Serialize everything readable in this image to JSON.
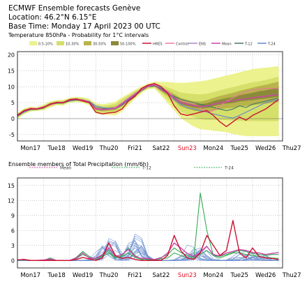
{
  "header": {
    "title": "ECMWF Ensemble forecasts Genève",
    "location": "Location:  46.2°N 6.15°E",
    "base_time": "Base Time: Monday 17 April 2023 00 UTC"
  },
  "colors": {
    "band1": "#ecf28e",
    "band2": "#d5e06a",
    "band3": "#b8b44c",
    "band4": "#8c8a3a",
    "hres": "#cc1133",
    "control": "#ee7799",
    "ens": "#aa88cc",
    "mean": "#cc44aa",
    "t12": "#447766",
    "t24": "#6688cc",
    "precip_member": "#6d8fd0",
    "precip_t12": "#33aa55",
    "sunday": "#dd1122"
  },
  "chart_data": [
    {
      "type": "area",
      "title": "Temperature 850hPa - Probability for 1°C intervals",
      "prob_legend": [
        "0.5-10%",
        "10-30%",
        "30-50%",
        "50-100%"
      ],
      "line_legend": [
        "HRES",
        "Control",
        "ENS",
        "Mean",
        "T-12",
        "T-24"
      ],
      "ylim": [
        -7,
        21
      ],
      "yticks": [
        -5,
        0,
        5,
        10,
        15,
        20
      ],
      "x_days": [
        0,
        1,
        2,
        3,
        4,
        5,
        6,
        7,
        8,
        9,
        10
      ],
      "x_labels": [
        "Mon17",
        "Tue18",
        "Wed19",
        "Thu20",
        "Fri21",
        "Sat22",
        "Sun23",
        "Mon24",
        "Tue25",
        "Wed26",
        "Thu27"
      ],
      "sunday_index": 6,
      "x": [
        0,
        0.25,
        0.5,
        0.75,
        1,
        1.25,
        1.5,
        1.75,
        2,
        2.25,
        2.5,
        2.75,
        3,
        3.25,
        3.5,
        3.75,
        4,
        4.25,
        4.5,
        4.75,
        5,
        5.25,
        5.5,
        5.75,
        6,
        6.25,
        6.5,
        6.75,
        7,
        7.25,
        7.5,
        7.75,
        8,
        8.25,
        8.5,
        8.75,
        9,
        9.25,
        9.5,
        9.75,
        10
      ],
      "series": [
        {
          "name": "Mean",
          "values": [
            1,
            2.3,
            3,
            3,
            3.5,
            4.5,
            5,
            5,
            5.8,
            6,
            5.8,
            5.2,
            3,
            2.8,
            3,
            3.2,
            4.5,
            6,
            7.5,
            9,
            10.2,
            10.5,
            9,
            8,
            6.5,
            5,
            4.5,
            4,
            3.8,
            4,
            4.5,
            5,
            5.3,
            5.5,
            6,
            6.2,
            6.5,
            6.8,
            7,
            7.3,
            7.5
          ]
        },
        {
          "name": "HRES",
          "values": [
            1,
            2.5,
            3.1,
            3,
            3.5,
            4.5,
            5.1,
            5,
            6,
            6.2,
            5.5,
            5,
            2,
            1.5,
            1.8,
            2,
            3,
            5.5,
            7,
            9.5,
            10.5,
            11,
            10,
            8,
            4,
            1.5,
            1,
            1.5,
            2,
            2.5,
            1,
            -1,
            -2.5,
            -1,
            0.5,
            -0.5,
            1,
            2,
            3,
            4.5,
            6
          ]
        },
        {
          "name": "Control",
          "values": [
            1.2,
            2.4,
            3.3,
            3.2,
            3.8,
            4.2,
            5,
            5.2,
            5.8,
            6.1,
            5.9,
            5.1,
            3.3,
            3,
            2.8,
            3.5,
            5,
            6.5,
            8,
            9.2,
            10,
            10.8,
            10,
            8.5,
            6.5,
            5.5,
            5,
            4.5,
            3.5,
            2,
            2.5,
            4,
            5.5,
            6.5,
            7.5,
            8.5,
            9,
            9.2,
            9.5,
            9.5,
            9.5
          ]
        },
        {
          "name": "T-12",
          "values": [
            0.8,
            2.2,
            2.8,
            2.9,
            3.3,
            4.6,
            4.8,
            4.9,
            5.5,
            5.8,
            5.7,
            5.3,
            3.5,
            3.2,
            3,
            3.2,
            4.2,
            5.8,
            7.2,
            8.8,
            10,
            10.2,
            9.5,
            8,
            7,
            6,
            5.5,
            5,
            4.5,
            4,
            3.5,
            3,
            2.5,
            3,
            4,
            3.5,
            4.5,
            5,
            5.5,
            6,
            6.5
          ]
        },
        {
          "name": "T-24",
          "values": [
            0.7,
            2,
            2.9,
            3.1,
            3.6,
            4.3,
            4.9,
            5.1,
            5.7,
            6.1,
            5.6,
            5.4,
            4,
            3.5,
            3.2,
            3.5,
            4.8,
            6.2,
            7.6,
            9.1,
            10.1,
            10.9,
            9.6,
            8.2,
            6,
            4.5,
            3.5,
            3,
            2.5,
            2,
            1.5,
            1,
            0.5,
            0.2,
            1,
            2,
            3,
            4,
            5,
            5.5,
            6
          ]
        }
      ],
      "prob_envelopes": [
        {
          "name": "0.5-10%",
          "low": [
            0,
            1.3,
            2.2,
            2.4,
            2.6,
            3.5,
            4.2,
            4.1,
            5,
            5.2,
            4.9,
            4.2,
            1.6,
            1.2,
            1.2,
            1,
            2.2,
            4.2,
            6.2,
            8,
            9.2,
            9.4,
            7.2,
            4.8,
            2.6,
            0.2,
            -1.2,
            -2.5,
            -3.3,
            -3.5,
            -3.8,
            -4,
            -4.3,
            -4.8,
            -5.2,
            -5.5,
            -5.5,
            -5.5,
            -5.5,
            -5.5,
            -5.5
          ],
          "high": [
            1.8,
            3.2,
            3.8,
            3.6,
            4.4,
            5.4,
            5.8,
            5.9,
            6.6,
            6.8,
            6.7,
            6.2,
            4.8,
            4.5,
            4.8,
            5.3,
            6.7,
            7.8,
            9,
            10.2,
            11,
            11.6,
            11.5,
            11.5,
            11.3,
            11.2,
            11.3,
            11.5,
            11.7,
            12,
            12.5,
            13,
            13.5,
            14,
            14.5,
            15,
            15.5,
            15.8,
            16,
            16.2,
            16.5
          ]
        },
        {
          "name": "10-30%",
          "low": [
            0.3,
            1.6,
            2.5,
            2.6,
            2.9,
            3.8,
            4.5,
            4.4,
            5.3,
            5.5,
            5.2,
            4.6,
            2.1,
            1.7,
            1.8,
            1.8,
            3,
            4.8,
            6.6,
            8.4,
            9.5,
            9.7,
            8,
            6,
            4.1,
            2.2,
            1.3,
            0.5,
            -0.2,
            -0.4,
            -0.4,
            -0.4,
            -0.5,
            -0.6,
            -0.7,
            -0.8,
            -0.8,
            -0.8,
            -0.8,
            -0.8,
            -0.8
          ],
          "high": [
            1.6,
            2.9,
            3.5,
            3.4,
            4.1,
            5.1,
            5.5,
            5.6,
            6.3,
            6.5,
            6.4,
            5.8,
            4.3,
            4,
            4.2,
            4.7,
            6.1,
            7.3,
            8.6,
            9.7,
            10.8,
            11.2,
            10.5,
            9.8,
            9,
            8.2,
            7.9,
            7.7,
            7.6,
            7.8,
            8.3,
            8.9,
            9.4,
            9.9,
            10.4,
            10.9,
            11.4,
            11.7,
            12.1,
            12.6,
            13.2
          ]
        },
        {
          "name": "30-50%",
          "low": [
            0.6,
            1.9,
            2.7,
            2.8,
            3.2,
            4.1,
            4.7,
            4.7,
            5.5,
            5.7,
            5.5,
            4.9,
            2.6,
            2.3,
            2.4,
            2.6,
            3.9,
            5.4,
            7,
            8.7,
            9.8,
            10.1,
            8.6,
            7.1,
            5.5,
            3.8,
            3.1,
            2.5,
            2.2,
            2.2,
            2.5,
            2.9,
            3.2,
            3.4,
            3.8,
            4,
            4.2,
            4.5,
            4.7,
            5,
            5.2
          ],
          "high": [
            1.4,
            2.7,
            3.3,
            3.2,
            3.8,
            4.9,
            5.3,
            5.3,
            6.1,
            6.3,
            6.1,
            5.5,
            3.6,
            3.3,
            3.6,
            3.8,
            5.1,
            6.6,
            8.1,
            9.3,
            10.6,
            10.9,
            9.7,
            8.9,
            7.7,
            6.5,
            5.9,
            5.5,
            5.4,
            5.8,
            6.5,
            7.1,
            7.6,
            8.1,
            8.7,
            9.2,
            9.7,
            10.2,
            10.6,
            11.1,
            11.6
          ]
        },
        {
          "name": "50-100%",
          "low": [
            0.8,
            2.1,
            2.9,
            2.9,
            3.4,
            4.3,
            4.9,
            4.9,
            5.7,
            5.9,
            5.7,
            5.1,
            2.9,
            2.6,
            2.8,
            3,
            4.4,
            5.8,
            7.4,
            8.9,
            10,
            10.3,
            8.9,
            7.6,
            6.1,
            4.6,
            4,
            3.5,
            3.2,
            3.4,
            3.9,
            4.4,
            4.7,
            4.9,
            5.4,
            5.6,
            5.8,
            6.1,
            6.3,
            6.6,
            6.8
          ],
          "high": [
            1.2,
            2.5,
            3.1,
            3.1,
            3.6,
            4.7,
            5.1,
            5.1,
            5.9,
            6.1,
            5.9,
            5.3,
            3.2,
            3,
            3.3,
            3.5,
            4.7,
            6.2,
            7.7,
            9.1,
            10.4,
            10.7,
            9.3,
            8.4,
            7,
            5.6,
            5.1,
            4.6,
            4.5,
            4.8,
            5.5,
            6,
            6.4,
            6.8,
            7.3,
            7.7,
            8.1,
            8.6,
            8.9,
            9.3,
            9.8
          ]
        }
      ]
    },
    {
      "type": "line",
      "title": "Ensemble members of Total Precipitation (mm/6h)",
      "line_legend": [
        "Mean",
        "T-12",
        "T-24"
      ],
      "ylim": [
        -1.5,
        16.5
      ],
      "yticks": [
        0,
        3,
        6,
        9,
        12,
        15
      ],
      "x_days": [
        0,
        1,
        2,
        3,
        4,
        5,
        6,
        7,
        8,
        9,
        10
      ],
      "x_labels": [
        "Mon17",
        "Tue18",
        "Wed19",
        "Thu20",
        "Fri21",
        "Sat22",
        "Sun23",
        "Mon24",
        "Tue25",
        "Wed26",
        "Thu27"
      ],
      "sunday_index": 6,
      "x": [
        0,
        0.25,
        0.5,
        0.75,
        1,
        1.25,
        1.5,
        1.75,
        2,
        2.25,
        2.5,
        2.75,
        3,
        3.25,
        3.5,
        3.75,
        4,
        4.25,
        4.5,
        4.75,
        5,
        5.25,
        5.5,
        5.75,
        6,
        6.25,
        6.5,
        6.75,
        7,
        7.25,
        7.5,
        7.75,
        8,
        8.25,
        8.5,
        8.75,
        9,
        9.25,
        9.5,
        9.75,
        10
      ],
      "series": [
        {
          "name": "Mean",
          "values": [
            0.1,
            0.2,
            0,
            0,
            0.1,
            0.3,
            0,
            0,
            0,
            0.5,
            1.5,
            0.5,
            0.4,
            1.2,
            2.5,
            0.8,
            1.2,
            2.2,
            0.8,
            0.4,
            0.4,
            0.2,
            0.5,
            1.5,
            3.5,
            2.5,
            1.4,
            0.8,
            1.6,
            2.8,
            1.2,
            0.9,
            1.5,
            1.8,
            2.2,
            2,
            1.6,
            1.5,
            1.2,
            1.4,
            1.6
          ]
        },
        {
          "name": "HRES",
          "values": [
            0.1,
            0.2,
            0,
            0,
            0,
            0,
            0,
            0,
            0,
            0.2,
            0.6,
            0.3,
            0,
            0.5,
            3.5,
            1,
            0.4,
            0.6,
            0.2,
            0,
            0,
            0,
            0,
            1,
            5,
            2,
            0.5,
            0.2,
            1.5,
            5,
            3,
            1,
            2,
            8,
            1.5,
            0.5,
            2.5,
            0.8,
            0.5,
            0.4,
            0.2
          ]
        },
        {
          "name": "T-12",
          "values": [
            0.1,
            0.1,
            0,
            0,
            0,
            0.5,
            0,
            0,
            0,
            0.4,
            1.2,
            0.6,
            0.4,
            0.8,
            1.5,
            0.4,
            1,
            2.5,
            1,
            0.3,
            0.2,
            0.1,
            0.3,
            0.5,
            1.5,
            1,
            0.5,
            0.4,
            13.5,
            6,
            1,
            0.5,
            1,
            1.5,
            1.5,
            1.2,
            1,
            0.8,
            0.6,
            0.5,
            0.4
          ]
        },
        {
          "name": "T-24",
          "values": [
            0.1,
            0.2,
            0,
            0,
            0,
            0.2,
            0,
            0,
            0,
            0.6,
            1.8,
            0.8,
            0.2,
            1,
            2,
            0.5,
            0.8,
            1.5,
            0.6,
            0.2,
            0.3,
            0.2,
            0.6,
            1.2,
            2.5,
            1.6,
            1,
            0.6,
            1.2,
            2,
            1,
            0.8,
            1.2,
            1.6,
            2,
            1.8,
            1.4,
            1.2,
            1,
            1.2,
            1.2
          ]
        }
      ],
      "member_count": 16,
      "member_peaks": [
        [
          2.8,
          2,
          1.5,
          0.6
        ],
        [
          1.5,
          4,
          2,
          0.8
        ],
        [
          4.5,
          2,
          1,
          0.5
        ],
        [
          3,
          5.5,
          1.2,
          0.7
        ],
        [
          2,
          3.5,
          2.5,
          1.5
        ],
        [
          3.5,
          1.5,
          3,
          1.2
        ],
        [
          2.5,
          5,
          1,
          0.8
        ],
        [
          5,
          2.5,
          2,
          1
        ],
        [
          1.8,
          3,
          1.5,
          2
        ],
        [
          4,
          6,
          1.2,
          0.6
        ],
        [
          3,
          4.5,
          2.5,
          1.6
        ],
        [
          2.2,
          2.8,
          3.5,
          1.8
        ],
        [
          3.8,
          3.2,
          1.8,
          1
        ],
        [
          2.6,
          4,
          2.2,
          1.4
        ],
        [
          1.6,
          2.4,
          1.4,
          0.9
        ],
        [
          4.2,
          3.8,
          2.8,
          1.2
        ]
      ],
      "member_centers": [
        [
          3.2,
          4.6,
          6.6,
          8.6
        ],
        [
          3.5,
          4.4,
          6.9,
          9.1
        ],
        [
          3.6,
          4.7,
          7.1,
          9.4
        ],
        [
          3.3,
          4.6,
          6.4,
          8.4
        ],
        [
          3.7,
          4.4,
          6.8,
          8.9
        ],
        [
          3.4,
          4.8,
          7.2,
          9.6
        ],
        [
          3.5,
          4.6,
          6.7,
          8.8
        ],
        [
          3.6,
          4.5,
          7,
          9.2
        ],
        [
          3.3,
          4.7,
          6.5,
          8.7
        ],
        [
          3.7,
          4.6,
          6.9,
          9
        ],
        [
          3.4,
          4.4,
          7.1,
          9.3
        ],
        [
          3.5,
          4.7,
          6.6,
          8.5
        ],
        [
          3.6,
          4.6,
          6.8,
          9.4
        ],
        [
          3.3,
          4.5,
          7,
          8.6
        ],
        [
          3.5,
          4.7,
          6.7,
          9.1
        ],
        [
          3.6,
          4.6,
          6.9,
          8.9
        ]
      ]
    }
  ]
}
